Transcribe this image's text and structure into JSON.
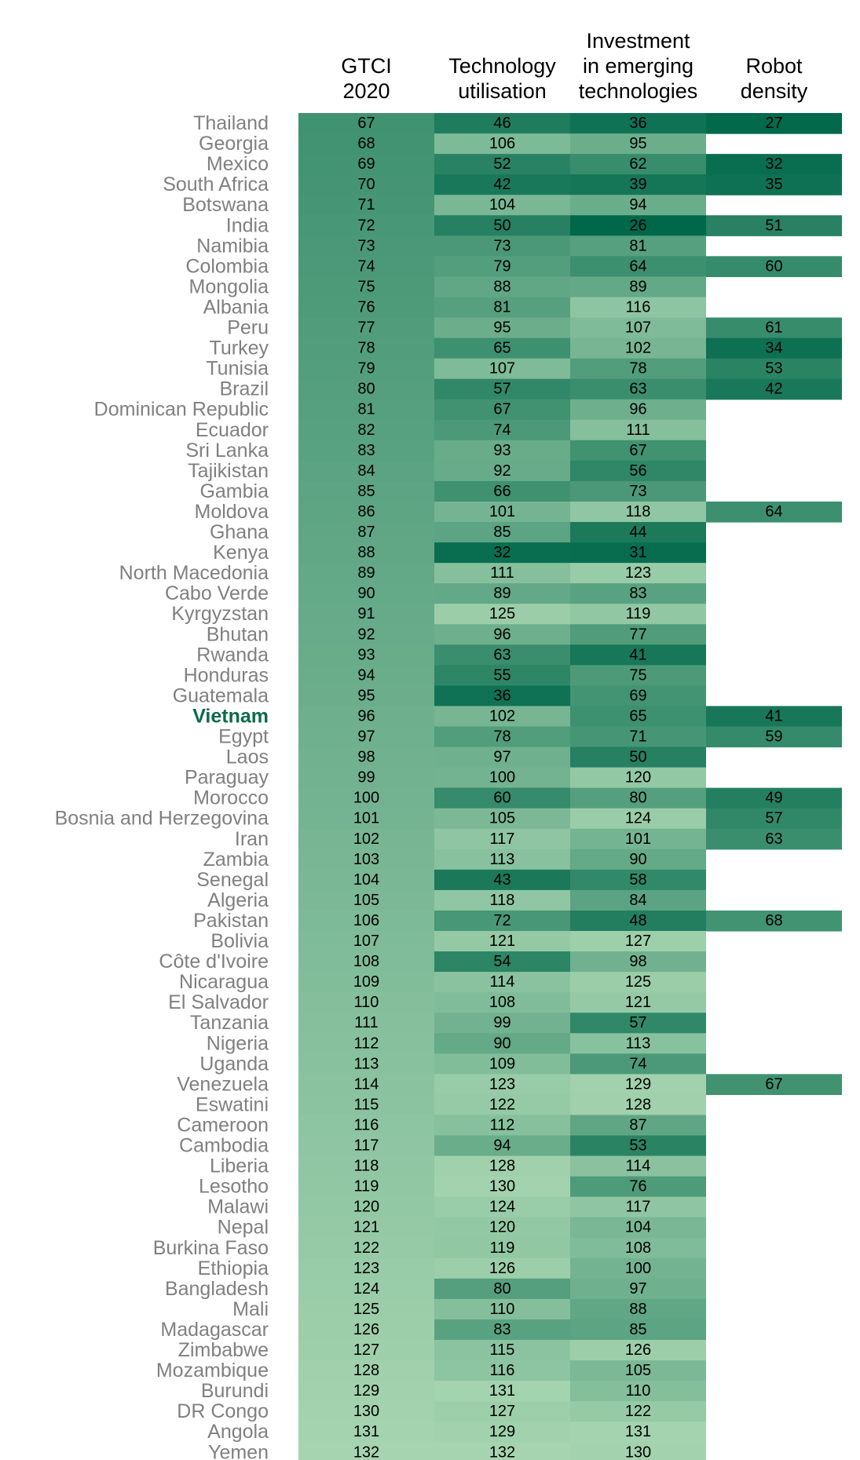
{
  "chart_data": {
    "type": "table",
    "title": "",
    "highlight_country": "Vietnam",
    "colors": {
      "dark": "#00684a",
      "light": "#a6d4b0",
      "label": "#808080",
      "highlight": "#0c6b4b"
    },
    "columns": [
      {
        "key": "gtci",
        "lines": [
          "GTCI",
          "2020"
        ]
      },
      {
        "key": "tech",
        "lines": [
          "Technology",
          "utilisation"
        ]
      },
      {
        "key": "inv",
        "lines": [
          "Investment",
          "in emerging",
          "technologies"
        ]
      },
      {
        "key": "robot",
        "lines": [
          "Robot",
          "density"
        ]
      }
    ],
    "rows": [
      {
        "country": "Thailand",
        "gtci": 67,
        "tech": 46,
        "inv": 36,
        "robot": 27
      },
      {
        "country": "Georgia",
        "gtci": 68,
        "tech": 106,
        "inv": 95,
        "robot": null
      },
      {
        "country": "Mexico",
        "gtci": 69,
        "tech": 52,
        "inv": 62,
        "robot": 32
      },
      {
        "country": "South Africa",
        "gtci": 70,
        "tech": 42,
        "inv": 39,
        "robot": 35
      },
      {
        "country": "Botswana",
        "gtci": 71,
        "tech": 104,
        "inv": 94,
        "robot": null
      },
      {
        "country": "India",
        "gtci": 72,
        "tech": 50,
        "inv": 26,
        "robot": 51
      },
      {
        "country": "Namibia",
        "gtci": 73,
        "tech": 73,
        "inv": 81,
        "robot": null
      },
      {
        "country": "Colombia",
        "gtci": 74,
        "tech": 79,
        "inv": 64,
        "robot": 60
      },
      {
        "country": "Mongolia",
        "gtci": 75,
        "tech": 88,
        "inv": 89,
        "robot": null
      },
      {
        "country": "Albania",
        "gtci": 76,
        "tech": 81,
        "inv": 116,
        "robot": null
      },
      {
        "country": "Peru",
        "gtci": 77,
        "tech": 95,
        "inv": 107,
        "robot": 61
      },
      {
        "country": "Turkey",
        "gtci": 78,
        "tech": 65,
        "inv": 102,
        "robot": 34
      },
      {
        "country": "Tunisia",
        "gtci": 79,
        "tech": 107,
        "inv": 78,
        "robot": 53
      },
      {
        "country": "Brazil",
        "gtci": 80,
        "tech": 57,
        "inv": 63,
        "robot": 42
      },
      {
        "country": "Dominican Republic",
        "gtci": 81,
        "tech": 67,
        "inv": 96,
        "robot": null
      },
      {
        "country": "Ecuador",
        "gtci": 82,
        "tech": 74,
        "inv": 111,
        "robot": null
      },
      {
        "country": "Sri Lanka",
        "gtci": 83,
        "tech": 93,
        "inv": 67,
        "robot": null
      },
      {
        "country": "Tajikistan",
        "gtci": 84,
        "tech": 92,
        "inv": 56,
        "robot": null
      },
      {
        "country": "Gambia",
        "gtci": 85,
        "tech": 66,
        "inv": 73,
        "robot": null
      },
      {
        "country": "Moldova",
        "gtci": 86,
        "tech": 101,
        "inv": 118,
        "robot": 64
      },
      {
        "country": "Ghana",
        "gtci": 87,
        "tech": 85,
        "inv": 44,
        "robot": null
      },
      {
        "country": "Kenya",
        "gtci": 88,
        "tech": 32,
        "inv": 31,
        "robot": null
      },
      {
        "country": "North Macedonia",
        "gtci": 89,
        "tech": 111,
        "inv": 123,
        "robot": null
      },
      {
        "country": "Cabo Verde",
        "gtci": 90,
        "tech": 89,
        "inv": 83,
        "robot": null
      },
      {
        "country": "Kyrgyzstan",
        "gtci": 91,
        "tech": 125,
        "inv": 119,
        "robot": null
      },
      {
        "country": "Bhutan",
        "gtci": 92,
        "tech": 96,
        "inv": 77,
        "robot": null
      },
      {
        "country": "Rwanda",
        "gtci": 93,
        "tech": 63,
        "inv": 41,
        "robot": null
      },
      {
        "country": "Honduras",
        "gtci": 94,
        "tech": 55,
        "inv": 75,
        "robot": null
      },
      {
        "country": "Guatemala",
        "gtci": 95,
        "tech": 36,
        "inv": 69,
        "robot": null
      },
      {
        "country": "Vietnam",
        "gtci": 96,
        "tech": 102,
        "inv": 65,
        "robot": 41
      },
      {
        "country": "Egypt",
        "gtci": 97,
        "tech": 78,
        "inv": 71,
        "robot": 59
      },
      {
        "country": "Laos",
        "gtci": 98,
        "tech": 97,
        "inv": 50,
        "robot": null
      },
      {
        "country": "Paraguay",
        "gtci": 99,
        "tech": 100,
        "inv": 120,
        "robot": null
      },
      {
        "country": "Morocco",
        "gtci": 100,
        "tech": 60,
        "inv": 80,
        "robot": 49
      },
      {
        "country": "Bosnia and Herzegovina",
        "gtci": 101,
        "tech": 105,
        "inv": 124,
        "robot": 57
      },
      {
        "country": "Iran",
        "gtci": 102,
        "tech": 117,
        "inv": 101,
        "robot": 63
      },
      {
        "country": "Zambia",
        "gtci": 103,
        "tech": 113,
        "inv": 90,
        "robot": null
      },
      {
        "country": "Senegal",
        "gtci": 104,
        "tech": 43,
        "inv": 58,
        "robot": null
      },
      {
        "country": "Algeria",
        "gtci": 105,
        "tech": 118,
        "inv": 84,
        "robot": null
      },
      {
        "country": "Pakistan",
        "gtci": 106,
        "tech": 72,
        "inv": 48,
        "robot": 68
      },
      {
        "country": "Bolivia",
        "gtci": 107,
        "tech": 121,
        "inv": 127,
        "robot": null
      },
      {
        "country": "Côte d'Ivoire",
        "gtci": 108,
        "tech": 54,
        "inv": 98,
        "robot": null
      },
      {
        "country": "Nicaragua",
        "gtci": 109,
        "tech": 114,
        "inv": 125,
        "robot": null
      },
      {
        "country": "El Salvador",
        "gtci": 110,
        "tech": 108,
        "inv": 121,
        "robot": null
      },
      {
        "country": "Tanzania",
        "gtci": 111,
        "tech": 99,
        "inv": 57,
        "robot": null
      },
      {
        "country": "Nigeria",
        "gtci": 112,
        "tech": 90,
        "inv": 113,
        "robot": null
      },
      {
        "country": "Uganda",
        "gtci": 113,
        "tech": 109,
        "inv": 74,
        "robot": null
      },
      {
        "country": "Venezuela",
        "gtci": 114,
        "tech": 123,
        "inv": 129,
        "robot": 67
      },
      {
        "country": "Eswatini",
        "gtci": 115,
        "tech": 122,
        "inv": 128,
        "robot": null
      },
      {
        "country": "Cameroon",
        "gtci": 116,
        "tech": 112,
        "inv": 87,
        "robot": null
      },
      {
        "country": "Cambodia",
        "gtci": 117,
        "tech": 94,
        "inv": 53,
        "robot": null
      },
      {
        "country": "Liberia",
        "gtci": 118,
        "tech": 128,
        "inv": 114,
        "robot": null
      },
      {
        "country": "Lesotho",
        "gtci": 119,
        "tech": 130,
        "inv": 76,
        "robot": null
      },
      {
        "country": "Malawi",
        "gtci": 120,
        "tech": 124,
        "inv": 117,
        "robot": null
      },
      {
        "country": "Nepal",
        "gtci": 121,
        "tech": 120,
        "inv": 104,
        "robot": null
      },
      {
        "country": "Burkina Faso",
        "gtci": 122,
        "tech": 119,
        "inv": 108,
        "robot": null
      },
      {
        "country": "Ethiopia",
        "gtci": 123,
        "tech": 126,
        "inv": 100,
        "robot": null
      },
      {
        "country": "Bangladesh",
        "gtci": 124,
        "tech": 80,
        "inv": 97,
        "robot": null
      },
      {
        "country": "Mali",
        "gtci": 125,
        "tech": 110,
        "inv": 88,
        "robot": null
      },
      {
        "country": "Madagascar",
        "gtci": 126,
        "tech": 83,
        "inv": 85,
        "robot": null
      },
      {
        "country": "Zimbabwe",
        "gtci": 127,
        "tech": 115,
        "inv": 126,
        "robot": null
      },
      {
        "country": "Mozambique",
        "gtci": 128,
        "tech": 116,
        "inv": 105,
        "robot": null
      },
      {
        "country": "Burundi",
        "gtci": 129,
        "tech": 131,
        "inv": 110,
        "robot": null
      },
      {
        "country": "DR Congo",
        "gtci": 130,
        "tech": 127,
        "inv": 122,
        "robot": null
      },
      {
        "country": "Angola",
        "gtci": 131,
        "tech": 129,
        "inv": 131,
        "robot": null
      },
      {
        "country": "Yemen",
        "gtci": 132,
        "tech": 132,
        "inv": 130,
        "robot": null
      }
    ]
  }
}
